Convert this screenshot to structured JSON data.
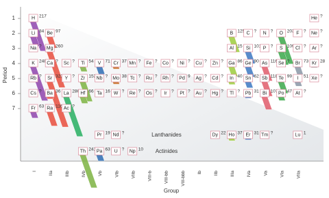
{
  "chart_data": {
    "type": "bar",
    "x_label": "Group",
    "y_label": "Period",
    "categories": [
      "I",
      "IIa",
      "IIIb",
      "IVb",
      "Vb",
      "VIb",
      "VIIb",
      "VIII-b",
      "VIII-bb",
      "VIII-bbb",
      "Ib",
      "IIb",
      "IIIa",
      "IVa",
      "Va",
      "VIa",
      "VIIa",
      null
    ],
    "group_colors": [
      "#8e44ad",
      "#e74c3c",
      "#27ae60",
      "#7cb342",
      "#2e6db4",
      "#c8702a",
      "#999999",
      "#999999",
      "#999999",
      "#999999",
      "#999999",
      "#999999",
      "#9ccc3c",
      "#3b78c2",
      "#e05a6a",
      "#3aa84a",
      "#8a96a6",
      "#999999"
    ],
    "ylim": [
      0.5,
      7.5
    ],
    "yticks": [
      1,
      2,
      3,
      4,
      5,
      6,
      7
    ],
    "elements": [
      {
        "symbol": "H",
        "period": 1,
        "group": 0,
        "value": 217
      },
      {
        "symbol": "He",
        "period": 1,
        "group": 17,
        "value": null,
        "label": "?"
      },
      {
        "symbol": "Li",
        "period": 2,
        "group": 0,
        "value": 84
      },
      {
        "symbol": "Be",
        "period": 2,
        "group": 1,
        "value": 97
      },
      {
        "symbol": "B",
        "period": 2,
        "group": 12,
        "value": 125
      },
      {
        "symbol": "C",
        "period": 2,
        "group": 13,
        "value": null,
        "label": "?"
      },
      {
        "symbol": "N",
        "period": 2,
        "group": 14,
        "value": null,
        "label": "?"
      },
      {
        "symbol": "O",
        "period": 2,
        "group": 15,
        "value": 203
      },
      {
        "symbol": "F",
        "period": 2,
        "group": 16,
        "value": null,
        "label": "?"
      },
      {
        "symbol": "Ne",
        "period": 2,
        "group": 17,
        "value": null,
        "label": "?"
      },
      {
        "symbol": "Na",
        "period": 3,
        "group": 0,
        "value": null,
        "label": "?"
      },
      {
        "symbol": "Mg",
        "period": 3,
        "group": 1,
        "value": 260
      },
      {
        "symbol": "Al",
        "period": 3,
        "group": 12,
        "value": 15
      },
      {
        "symbol": "Si",
        "period": 3,
        "group": 13,
        "value": 101
      },
      {
        "symbol": "P",
        "period": 3,
        "group": 14,
        "value": null,
        "label": "?"
      },
      {
        "symbol": "S",
        "period": 3,
        "group": 15,
        "value": 109
      },
      {
        "symbol": "Cl",
        "period": 3,
        "group": 16,
        "value": null,
        "label": "?"
      },
      {
        "symbol": "Ar",
        "period": 3,
        "group": 17,
        "value": null,
        "label": "?"
      },
      {
        "symbol": "K",
        "period": 4,
        "group": 0,
        "value": 248
      },
      {
        "symbol": "Ca",
        "period": 4,
        "group": 1,
        "value": null,
        "label": "?"
      },
      {
        "symbol": "Sc",
        "period": 4,
        "group": 2,
        "value": null,
        "label": "?"
      },
      {
        "symbol": "Ti",
        "period": 4,
        "group": 3,
        "value": 54
      },
      {
        "symbol": "V",
        "period": 4,
        "group": 4,
        "value": 71
      },
      {
        "symbol": "Cr",
        "period": 4,
        "group": 5,
        "value": 37
      },
      {
        "symbol": "Mn",
        "period": 4,
        "group": 6,
        "value": null,
        "label": "?"
      },
      {
        "symbol": "Fe",
        "period": 4,
        "group": 7,
        "value": null,
        "label": "?"
      },
      {
        "symbol": "Co",
        "period": 4,
        "group": 8,
        "value": null,
        "label": "?"
      },
      {
        "symbol": "Ni",
        "period": 4,
        "group": 9,
        "value": null,
        "label": "?"
      },
      {
        "symbol": "Cu",
        "period": 4,
        "group": 10,
        "value": null,
        "label": "?"
      },
      {
        "symbol": "Zn",
        "period": 4,
        "group": 11,
        "value": null,
        "label": "?"
      },
      {
        "symbol": "Ga",
        "period": 4,
        "group": 12,
        "value": 86
      },
      {
        "symbol": "Ge",
        "period": 4,
        "group": 13,
        "value": 90
      },
      {
        "symbol": "As",
        "period": 4,
        "group": 14,
        "value": 116
      },
      {
        "symbol": "Se",
        "period": 4,
        "group": 15,
        "value": null,
        "label": "?"
      },
      {
        "symbol": "Br",
        "period": 4,
        "group": 16,
        "value": 73
      },
      {
        "symbol": "Kr",
        "period": 4,
        "group": 17,
        "value": 28
      },
      {
        "symbol": "Rb",
        "period": 5,
        "group": 0,
        "value": null,
        "label": "?"
      },
      {
        "symbol": "Sr",
        "period": 5,
        "group": 1,
        "value": 323
      },
      {
        "symbol": "Y",
        "period": 5,
        "group": 2,
        "value": null,
        "label": "?"
      },
      {
        "symbol": "Zr",
        "period": 5,
        "group": 3,
        "value": 153
      },
      {
        "symbol": "Nb",
        "period": 5,
        "group": 4,
        "value": null,
        "label": "?"
      },
      {
        "symbol": "Mo",
        "period": 5,
        "group": 5,
        "value": 38
      },
      {
        "symbol": "Tc",
        "period": 5,
        "group": 6,
        "value": null,
        "label": "?"
      },
      {
        "symbol": "Ru",
        "period": 5,
        "group": 7,
        "value": null,
        "label": "?"
      },
      {
        "symbol": "Rh",
        "period": 5,
        "group": 8,
        "value": null,
        "label": "?"
      },
      {
        "symbol": "Pd",
        "period": 5,
        "group": 9,
        "value": 9
      },
      {
        "symbol": "Ag",
        "period": 5,
        "group": 10,
        "value": null,
        "label": "?"
      },
      {
        "symbol": "Cd",
        "period": 5,
        "group": 11,
        "value": null,
        "label": "?"
      },
      {
        "symbol": "In",
        "period": 5,
        "group": 12,
        "value": 40
      },
      {
        "symbol": "Sn",
        "period": 5,
        "group": 13,
        "value": 62
      },
      {
        "symbol": "Sb",
        "period": 5,
        "group": 14,
        "value": 118
      },
      {
        "symbol": "Te",
        "period": 5,
        "group": 15,
        "value": 99
      },
      {
        "symbol": "I",
        "period": 5,
        "group": 16,
        "value": 51
      },
      {
        "symbol": "Xe",
        "period": 5,
        "group": 17,
        "value": null,
        "label": "?"
      },
      {
        "symbol": "Cs",
        "period": 6,
        "group": 0,
        "value": null,
        "label": "?"
      },
      {
        "symbol": "Ba",
        "period": 6,
        "group": 1,
        "value": 36
      },
      {
        "symbol": "La",
        "period": 6,
        "group": 2,
        "value": 286
      },
      {
        "symbol": "Hf",
        "period": 6,
        "group": 3,
        "value": 66
      },
      {
        "symbol": "Ta",
        "period": 6,
        "group": 4,
        "value": 16
      },
      {
        "symbol": "W",
        "period": 6,
        "group": 5,
        "value": null,
        "label": "?"
      },
      {
        "symbol": "Re",
        "period": 6,
        "group": 6,
        "value": null,
        "label": "?"
      },
      {
        "symbol": "Os",
        "period": 6,
        "group": 7,
        "value": null,
        "label": "?"
      },
      {
        "symbol": "Ir",
        "period": 6,
        "group": 8,
        "value": null,
        "label": "?"
      },
      {
        "symbol": "Pt",
        "period": 6,
        "group": 9,
        "value": null,
        "label": "?"
      },
      {
        "symbol": "Au",
        "period": 6,
        "group": 10,
        "value": null,
        "label": "?"
      },
      {
        "symbol": "Hg",
        "period": 6,
        "group": 11,
        "value": null,
        "label": "?"
      },
      {
        "symbol": "Tl",
        "period": 6,
        "group": 12,
        "value": null,
        "label": "?"
      },
      {
        "symbol": "Pb",
        "period": 6,
        "group": 13,
        "value": 31
      },
      {
        "symbol": "Bi",
        "period": 6,
        "group": 14,
        "value": 107
      },
      {
        "symbol": "Po",
        "period": 6,
        "group": 15,
        "value": 47
      },
      {
        "symbol": "At",
        "period": 6,
        "group": 16,
        "value": null,
        "label": "?"
      },
      {
        "symbol": "Fr",
        "period": 7,
        "group": 0,
        "value": 63
      },
      {
        "symbol": "Ra",
        "period": 7,
        "group": 1,
        "value": 116
      },
      {
        "symbol": "Ac",
        "period": 7,
        "group": 2,
        "value": null,
        "label": "?"
      }
    ],
    "lanthanides_label": "Lanthanides",
    "lanthanides": [
      {
        "symbol": "Pr",
        "group": 4,
        "value": 19
      },
      {
        "symbol": "Nd",
        "group": 5,
        "value": null,
        "label": "?"
      },
      {
        "symbol": "Dy",
        "group": 11,
        "value": 22
      },
      {
        "symbol": "Ho",
        "group": 12,
        "value": 37
      },
      {
        "symbol": "Er",
        "group": 13,
        "value": 31
      },
      {
        "symbol": "Tm",
        "group": 14,
        "value": null,
        "label": "?"
      },
      {
        "symbol": "Lu",
        "group": 16,
        "value": 1
      }
    ],
    "actinides_label": "Actinides",
    "actinides": [
      {
        "symbol": "Th",
        "group": 3,
        "value": 241
      },
      {
        "symbol": "Pa",
        "group": 4,
        "value": 63
      },
      {
        "symbol": "U",
        "group": 5,
        "value": null,
        "label": "?"
      },
      {
        "symbol": "Np",
        "group": 6,
        "value": 10
      }
    ]
  }
}
